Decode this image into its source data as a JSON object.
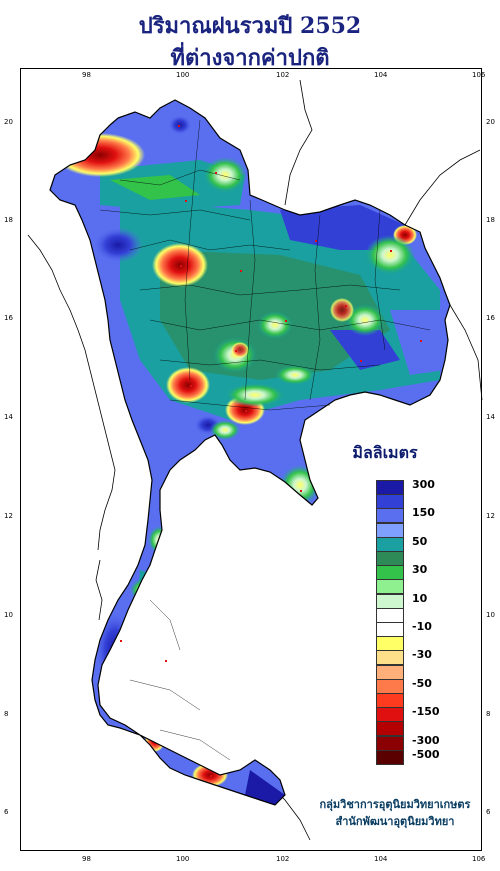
{
  "title": {
    "line1": "ปริมาณฝนรวมปี  2552",
    "line2": "ที่ต่างจากค่าปกติ"
  },
  "axes": {
    "longitude_ticks": [
      "98",
      "100",
      "102",
      "104",
      "106"
    ],
    "latitude_ticks": [
      "20",
      "18",
      "16",
      "14",
      "12",
      "10",
      "8",
      "6"
    ]
  },
  "legend": {
    "title": "มิลลิเมตร",
    "items": [
      {
        "label": "300",
        "color": "#1a1aa6"
      },
      {
        "label": "",
        "color": "#3340d6"
      },
      {
        "label": "150",
        "color": "#5a6ff0"
      },
      {
        "label": "",
        "color": "#7fa0ff"
      },
      {
        "label": "50",
        "color": "#1aa0a0"
      },
      {
        "label": "",
        "color": "#2e8b57"
      },
      {
        "label": "30",
        "color": "#33c24a"
      },
      {
        "label": "",
        "color": "#8ef08e"
      },
      {
        "label": "10",
        "color": "#cff7cf"
      },
      {
        "label": "",
        "color": "#ffffff"
      },
      {
        "label": "-10",
        "color": "#ffffff"
      },
      {
        "label": "",
        "color": "#ffff66"
      },
      {
        "label": "-30",
        "color": "#ffe08a"
      },
      {
        "label": "",
        "color": "#ffb07a"
      },
      {
        "label": "-50",
        "color": "#ff7a4a"
      },
      {
        "label": "",
        "color": "#ff3b1f"
      },
      {
        "label": "-150",
        "color": "#e01010"
      },
      {
        "label": "",
        "color": "#b40000"
      },
      {
        "label": "-300",
        "color": "#8b0000"
      },
      {
        "label": "-500",
        "color": "#5a0000"
      }
    ]
  },
  "credit": {
    "line1": "กลุ่มวิชาการอุตุนิยมวิทยาเกษตร",
    "line2": "สำนักพัฒนาอุตุนิยมวิทยา"
  },
  "colors": {
    "title": "#1a237e",
    "sea": "#ffffff",
    "border": "#000000"
  }
}
